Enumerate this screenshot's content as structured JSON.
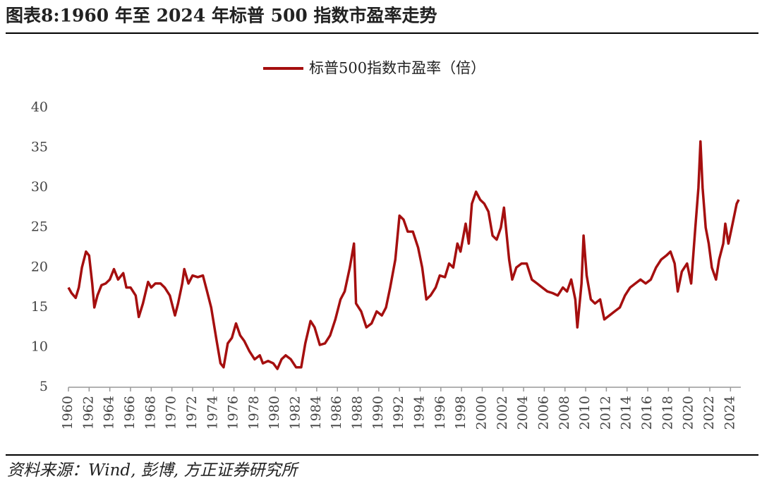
{
  "chart_data": {
    "type": "line",
    "title": "图表8:1960 年至 2024 年标普 500 指数市盈率走势",
    "source": "资料来源：Wind, 彭博, 方正证券研究所",
    "x": [
      1960.0,
      1960.3,
      1960.7,
      1961.0,
      1961.3,
      1961.7,
      1962.0,
      1962.3,
      1962.5,
      1962.8,
      1963.2,
      1963.6,
      1964.0,
      1964.4,
      1964.8,
      1965.3,
      1965.6,
      1966.0,
      1966.5,
      1966.8,
      1967.2,
      1967.7,
      1968.0,
      1968.4,
      1968.9,
      1969.3,
      1969.8,
      1970.3,
      1970.6,
      1971.0,
      1971.2,
      1971.6,
      1972.0,
      1972.5,
      1973.0,
      1973.4,
      1973.8,
      1974.3,
      1974.7,
      1975.0,
      1975.4,
      1975.8,
      1976.2,
      1976.6,
      1977.0,
      1977.5,
      1978.0,
      1978.5,
      1978.8,
      1979.3,
      1979.8,
      1980.2,
      1980.6,
      1981.0,
      1981.5,
      1982.0,
      1982.5,
      1982.9,
      1983.4,
      1983.8,
      1984.3,
      1984.8,
      1985.3,
      1985.8,
      1986.3,
      1986.7,
      1987.2,
      1987.6,
      1987.8,
      1988.3,
      1988.8,
      1989.3,
      1989.8,
      1990.3,
      1990.7,
      1991.1,
      1991.6,
      1992.0,
      1992.4,
      1992.8,
      1993.3,
      1993.8,
      1994.2,
      1994.6,
      1995.0,
      1995.5,
      1995.9,
      1996.4,
      1996.8,
      1997.2,
      1997.6,
      1997.9,
      1998.4,
      1998.7,
      1999.0,
      1999.4,
      1999.8,
      2000.2,
      2000.6,
      2001.0,
      2001.4,
      2001.8,
      2002.1,
      2002.6,
      2002.9,
      2003.3,
      2003.8,
      2004.3,
      2004.8,
      2005.3,
      2005.8,
      2006.3,
      2006.8,
      2007.3,
      2007.8,
      2008.2,
      2008.6,
      2009.0,
      2009.2,
      2009.6,
      2009.8,
      2010.1,
      2010.5,
      2010.9,
      2011.4,
      2011.8,
      2012.3,
      2012.8,
      2013.3,
      2013.8,
      2014.3,
      2014.8,
      2015.3,
      2015.8,
      2016.3,
      2016.8,
      2017.3,
      2017.8,
      2018.2,
      2018.6,
      2018.9,
      2019.3,
      2019.8,
      2020.2,
      2020.6,
      2020.9,
      2021.1,
      2021.3,
      2021.6,
      2021.9,
      2022.2,
      2022.6,
      2022.9,
      2023.3,
      2023.5,
      2023.8,
      2024.2,
      2024.6,
      2024.8
    ],
    "series": [
      {
        "name": "标普500指数市盈率（倍）",
        "color": "#a50f0f",
        "values": [
          17.5,
          16.8,
          16.2,
          17.5,
          20,
          22,
          21.5,
          18,
          15,
          16.5,
          17.8,
          18,
          18.5,
          19.8,
          18.5,
          19.3,
          17.5,
          17.5,
          16.5,
          13.8,
          15.5,
          18.2,
          17.5,
          18,
          18,
          17.5,
          16.5,
          14,
          15.5,
          18,
          19.8,
          18,
          19,
          18.8,
          19,
          17,
          15,
          11,
          8,
          7.5,
          10.5,
          11.2,
          13,
          11.5,
          10.8,
          9.5,
          8.5,
          9,
          8,
          8.3,
          8,
          7.3,
          8.5,
          9,
          8.5,
          7.5,
          7.5,
          10.5,
          13.3,
          12.5,
          10.3,
          10.5,
          11.5,
          13.5,
          16,
          17,
          20,
          23,
          15.5,
          14.5,
          12.5,
          13,
          14.5,
          14,
          15,
          17.5,
          21,
          26.5,
          26,
          24.5,
          24.5,
          22.5,
          20,
          16,
          16.5,
          17.5,
          19,
          18.8,
          20.5,
          20,
          23,
          22,
          25.5,
          23,
          28,
          29.5,
          28.5,
          28,
          27,
          24,
          23.5,
          25,
          27.5,
          21,
          18.5,
          20,
          20.5,
          20.5,
          18.5,
          18,
          17.5,
          17,
          16.8,
          16.5,
          17.5,
          17,
          18.5,
          16,
          12.5,
          18,
          24,
          19,
          16,
          15.5,
          16,
          13.5,
          14,
          14.5,
          15,
          16.5,
          17.5,
          18,
          18.5,
          18,
          18.5,
          20,
          21,
          21.5,
          22,
          20.5,
          17,
          19.5,
          20.5,
          18,
          25,
          30,
          35.8,
          30,
          25,
          23,
          20,
          18.5,
          21,
          23,
          25.5,
          23,
          25.5,
          28,
          28.5
        ]
      }
    ],
    "xlim": [
      1960,
      2025
    ],
    "xticks": [
      1960,
      1962,
      1964,
      1966,
      1968,
      1970,
      1972,
      1974,
      1976,
      1978,
      1980,
      1982,
      1984,
      1986,
      1988,
      1990,
      1992,
      1994,
      1996,
      1998,
      2000,
      2002,
      2004,
      2006,
      2008,
      2010,
      2012,
      2014,
      2016,
      2018,
      2020,
      2022,
      2024
    ],
    "ylim": [
      5,
      40
    ],
    "yticks": [
      5,
      10,
      15,
      20,
      25,
      30,
      35,
      40
    ],
    "legend": "top"
  }
}
